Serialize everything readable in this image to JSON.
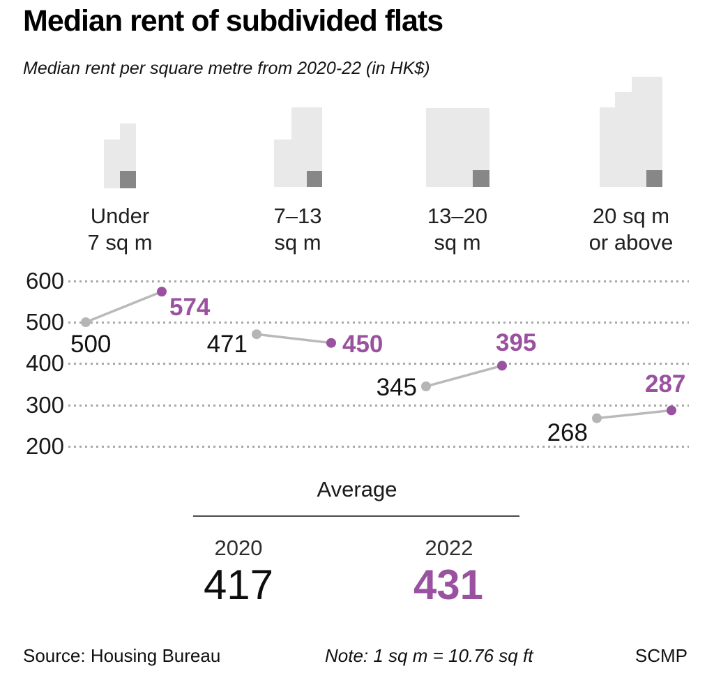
{
  "header": {
    "title": "Median rent of subdivided flats",
    "subtitle": "Median rent per square metre from 2020-22 (in HK$)"
  },
  "chart_data": {
    "type": "line",
    "title": "Median rent of subdivided flats",
    "subtitle": "Median rent per square metre from 2020-22 (in HK$)",
    "unit": "HK$ per square metre",
    "categories": [
      {
        "label_lines": [
          "Under",
          "7 sq m"
        ],
        "icon": "building-icon-small"
      },
      {
        "label_lines": [
          "7–13",
          "sq m"
        ],
        "icon": "building-icon-medium"
      },
      {
        "label_lines": [
          "13–20",
          "sq m"
        ],
        "icon": "building-icon-large"
      },
      {
        "label_lines": [
          "20 sq m",
          "or above"
        ],
        "icon": "building-icon-tallest"
      }
    ],
    "series": [
      {
        "name": "2020",
        "color": "#b5b5b5",
        "values": [
          500,
          471,
          345,
          268
        ]
      },
      {
        "name": "2022",
        "color": "#9a52a0",
        "values": [
          574,
          450,
          395,
          287
        ]
      }
    ],
    "yticks": [
      600,
      500,
      400,
      300,
      200
    ],
    "ylim": [
      200,
      600
    ],
    "grid": "dotted horizontal",
    "legend_position": "none",
    "average": {
      "label": "Average",
      "columns": [
        {
          "year": "2020",
          "value": "417"
        },
        {
          "year": "2022",
          "value": "431"
        }
      ]
    }
  },
  "footer": {
    "source": "Source: Housing Bureau",
    "note": "Note: 1 sq m = 10.76 sq ft",
    "credit": "SCMP"
  },
  "colors": {
    "accent_purple": "#9a52a0",
    "series_gray": "#b5b5b5",
    "building_light": "#e9e9e9",
    "building_dark": "#878787",
    "grid_dot": "#a8a8a8",
    "divider": "#4a4a4a"
  }
}
